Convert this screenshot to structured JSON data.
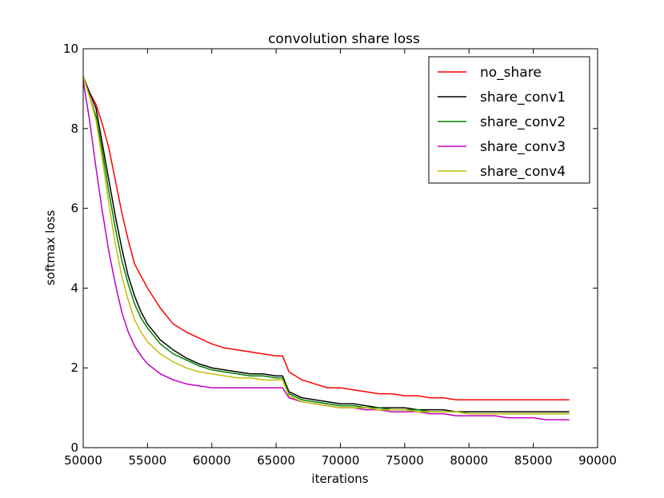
{
  "chart_data": {
    "type": "line",
    "title": "convolution share loss",
    "xlabel": "iterations",
    "ylabel": "softmax loss",
    "xlim": [
      50000,
      90000
    ],
    "ylim": [
      0,
      10
    ],
    "xticks": [
      50000,
      55000,
      60000,
      65000,
      70000,
      75000,
      80000,
      85000,
      90000
    ],
    "xtick_labels": [
      "50000",
      "55000",
      "60000",
      "65000",
      "70000",
      "75000",
      "80000",
      "85000",
      "90000"
    ],
    "yticks": [
      0,
      2,
      4,
      6,
      8,
      10
    ],
    "ytick_labels": [
      "0",
      "2",
      "4",
      "6",
      "8",
      "10"
    ],
    "grid": false,
    "legend_position": "top-right",
    "x": [
      50000,
      50500,
      51000,
      51500,
      52000,
      52500,
      53000,
      53500,
      54000,
      54500,
      55000,
      56000,
      57000,
      58000,
      59000,
      60000,
      61000,
      62000,
      63000,
      64000,
      65000,
      65500,
      66000,
      67000,
      68000,
      69000,
      70000,
      71000,
      72000,
      73000,
      74000,
      75000,
      76000,
      77000,
      78000,
      79000,
      80000,
      81000,
      82000,
      83000,
      84000,
      85000,
      86000,
      87000,
      87800
    ],
    "series": [
      {
        "name": "no_share",
        "color": "#ff0000",
        "values": [
          9.3,
          8.9,
          8.6,
          8.1,
          7.5,
          6.7,
          5.9,
          5.2,
          4.6,
          4.3,
          4.0,
          3.5,
          3.1,
          2.9,
          2.75,
          2.6,
          2.5,
          2.45,
          2.4,
          2.35,
          2.3,
          2.3,
          1.9,
          1.7,
          1.6,
          1.5,
          1.5,
          1.45,
          1.4,
          1.35,
          1.35,
          1.3,
          1.3,
          1.25,
          1.25,
          1.2,
          1.2,
          1.2,
          1.2,
          1.2,
          1.2,
          1.2,
          1.2,
          1.2,
          1.2
        ]
      },
      {
        "name": "share_conv1",
        "color": "#000000",
        "values": [
          9.3,
          8.9,
          8.5,
          7.6,
          6.7,
          5.8,
          5.0,
          4.3,
          3.8,
          3.4,
          3.1,
          2.7,
          2.45,
          2.25,
          2.1,
          2.0,
          1.95,
          1.9,
          1.85,
          1.85,
          1.8,
          1.8,
          1.4,
          1.25,
          1.2,
          1.15,
          1.1,
          1.1,
          1.05,
          1.0,
          1.0,
          1.0,
          0.95,
          0.95,
          0.95,
          0.9,
          0.9,
          0.9,
          0.9,
          0.9,
          0.9,
          0.9,
          0.9,
          0.9,
          0.9
        ]
      },
      {
        "name": "share_conv2",
        "color": "#008000",
        "values": [
          9.3,
          8.8,
          8.3,
          7.4,
          6.4,
          5.5,
          4.7,
          4.1,
          3.6,
          3.25,
          3.0,
          2.6,
          2.35,
          2.2,
          2.05,
          1.95,
          1.9,
          1.85,
          1.8,
          1.8,
          1.75,
          1.75,
          1.35,
          1.2,
          1.15,
          1.1,
          1.05,
          1.05,
          1.0,
          1.0,
          0.95,
          0.95,
          0.95,
          0.9,
          0.9,
          0.9,
          0.85,
          0.85,
          0.85,
          0.85,
          0.85,
          0.85,
          0.85,
          0.85,
          0.85
        ]
      },
      {
        "name": "share_conv3",
        "color": "#bf00bf",
        "values": [
          9.2,
          8.2,
          7.0,
          5.9,
          4.9,
          4.1,
          3.4,
          2.9,
          2.55,
          2.3,
          2.1,
          1.85,
          1.7,
          1.6,
          1.55,
          1.5,
          1.5,
          1.5,
          1.5,
          1.5,
          1.5,
          1.5,
          1.25,
          1.15,
          1.1,
          1.05,
          1.0,
          1.0,
          0.95,
          0.95,
          0.9,
          0.9,
          0.9,
          0.85,
          0.85,
          0.8,
          0.8,
          0.8,
          0.8,
          0.75,
          0.75,
          0.75,
          0.7,
          0.7,
          0.7
        ]
      },
      {
        "name": "share_conv4",
        "color": "#bfbf00",
        "values": [
          9.3,
          8.8,
          8.2,
          7.2,
          6.1,
          5.1,
          4.3,
          3.7,
          3.2,
          2.9,
          2.65,
          2.35,
          2.15,
          2.0,
          1.9,
          1.85,
          1.8,
          1.75,
          1.75,
          1.7,
          1.7,
          1.7,
          1.3,
          1.15,
          1.1,
          1.05,
          1.0,
          1.0,
          1.0,
          0.95,
          0.95,
          0.95,
          0.9,
          0.9,
          0.9,
          0.9,
          0.85,
          0.85,
          0.85,
          0.85,
          0.85,
          0.85,
          0.85,
          0.85,
          0.85
        ]
      }
    ]
  }
}
